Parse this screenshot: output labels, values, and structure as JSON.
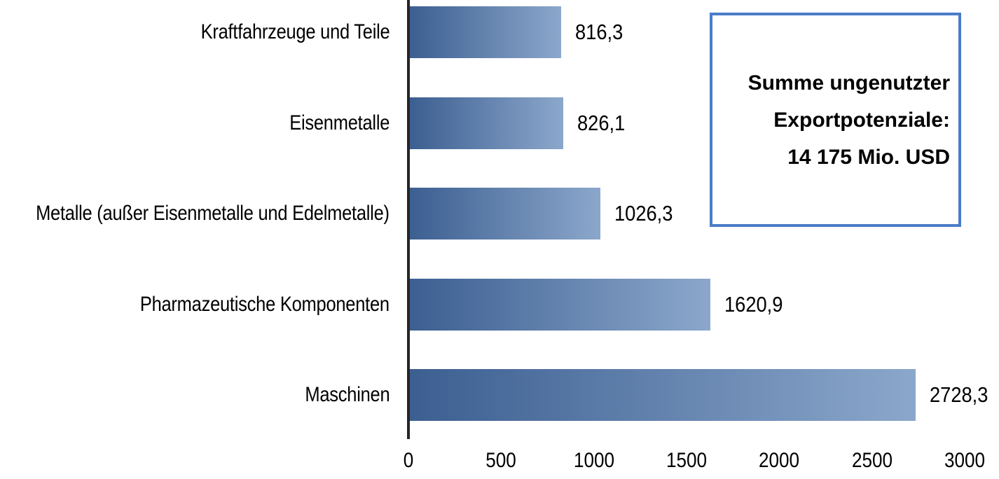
{
  "chart_data": {
    "type": "bar",
    "orientation": "horizontal",
    "title": "",
    "xlabel": "",
    "ylabel": "",
    "categories": [
      "Kraftfahrzeuge und Teile",
      "Eisenmetalle",
      "Metalle (außer Eisenmetalle und Edelmetalle)",
      "Pharmazeutische Komponenten",
      "Maschinen"
    ],
    "values": [
      816.3,
      826.1,
      1026.3,
      1620.9,
      2728.3
    ],
    "value_labels": [
      "816,3",
      "826,1",
      "1026,3",
      "1620,9",
      "2728,3"
    ],
    "xlim": [
      0,
      3000
    ],
    "x_tick_values": [
      0,
      500,
      1000,
      1500,
      2000,
      2500,
      3000
    ],
    "x_tick_labels": [
      "0",
      "500",
      "1000",
      "1500",
      "2000",
      "2500",
      "3000"
    ],
    "grid": false,
    "legend": "none",
    "colors": {
      "bar_gradient_start": "#3C5F91",
      "bar_gradient_end": "#8BA7CB",
      "axis_line": "#262626",
      "annotation_border": "#4A7CC8",
      "text": "#000000"
    },
    "annotation": {
      "position": "top-right",
      "lines": [
        "Summe ungenutzter",
        "Exportpotenziale:",
        "14 175 Mio. USD"
      ]
    }
  }
}
